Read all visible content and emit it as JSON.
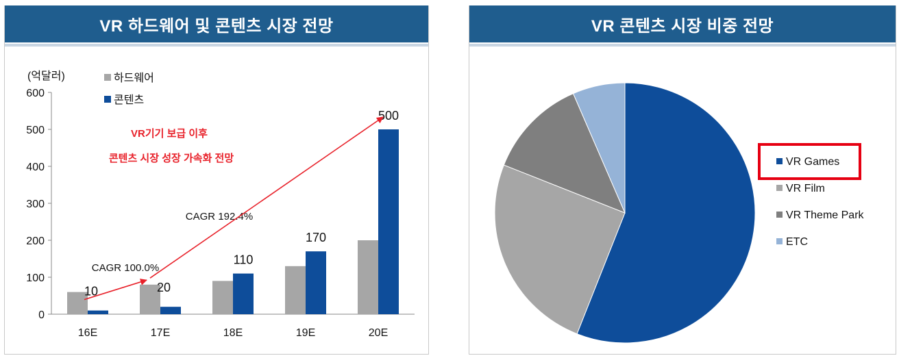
{
  "left": {
    "header": "VR 하드웨어 및 콘텐츠 시장 전망",
    "unit": "(억달러)",
    "annotation_line1": "VR기기 보급 이후",
    "annotation_line2": "콘텐츠  시장 성장 가속화 전망",
    "cagr1": "CAGR 100.0%",
    "cagr2": "CAGR 192.4%"
  },
  "right": {
    "header": "VR 콘텐츠 시장 비중 전망"
  },
  "chart_data": [
    {
      "type": "bar",
      "categories": [
        "16E",
        "17E",
        "18E",
        "19E",
        "20E"
      ],
      "series": [
        {
          "name": "하드웨어",
          "values": [
            60,
            80,
            90,
            130,
            200
          ],
          "color": "#a6a6a6"
        },
        {
          "name": "콘텐츠",
          "values": [
            10,
            20,
            110,
            170,
            500
          ],
          "color": "#0e4d9a"
        }
      ],
      "data_labels": [
        "10",
        "20",
        "110",
        "170",
        "500"
      ],
      "ylim": [
        0,
        600
      ],
      "yticks": [
        "0",
        "100",
        "200",
        "300",
        "400",
        "500",
        "600"
      ],
      "grid": false,
      "legend": "top-left"
    },
    {
      "type": "pie",
      "labels": [
        "VR Games",
        "VR Film",
        "VR Theme Park",
        "ETC"
      ],
      "values": [
        56,
        25,
        12.5,
        6.5
      ],
      "colors": [
        "#0e4d9a",
        "#a6a6a6",
        "#7f7f7f",
        "#95b3d7"
      ],
      "highlight": "VR Games",
      "highlight_color": "#e60012",
      "legend": "right"
    }
  ]
}
